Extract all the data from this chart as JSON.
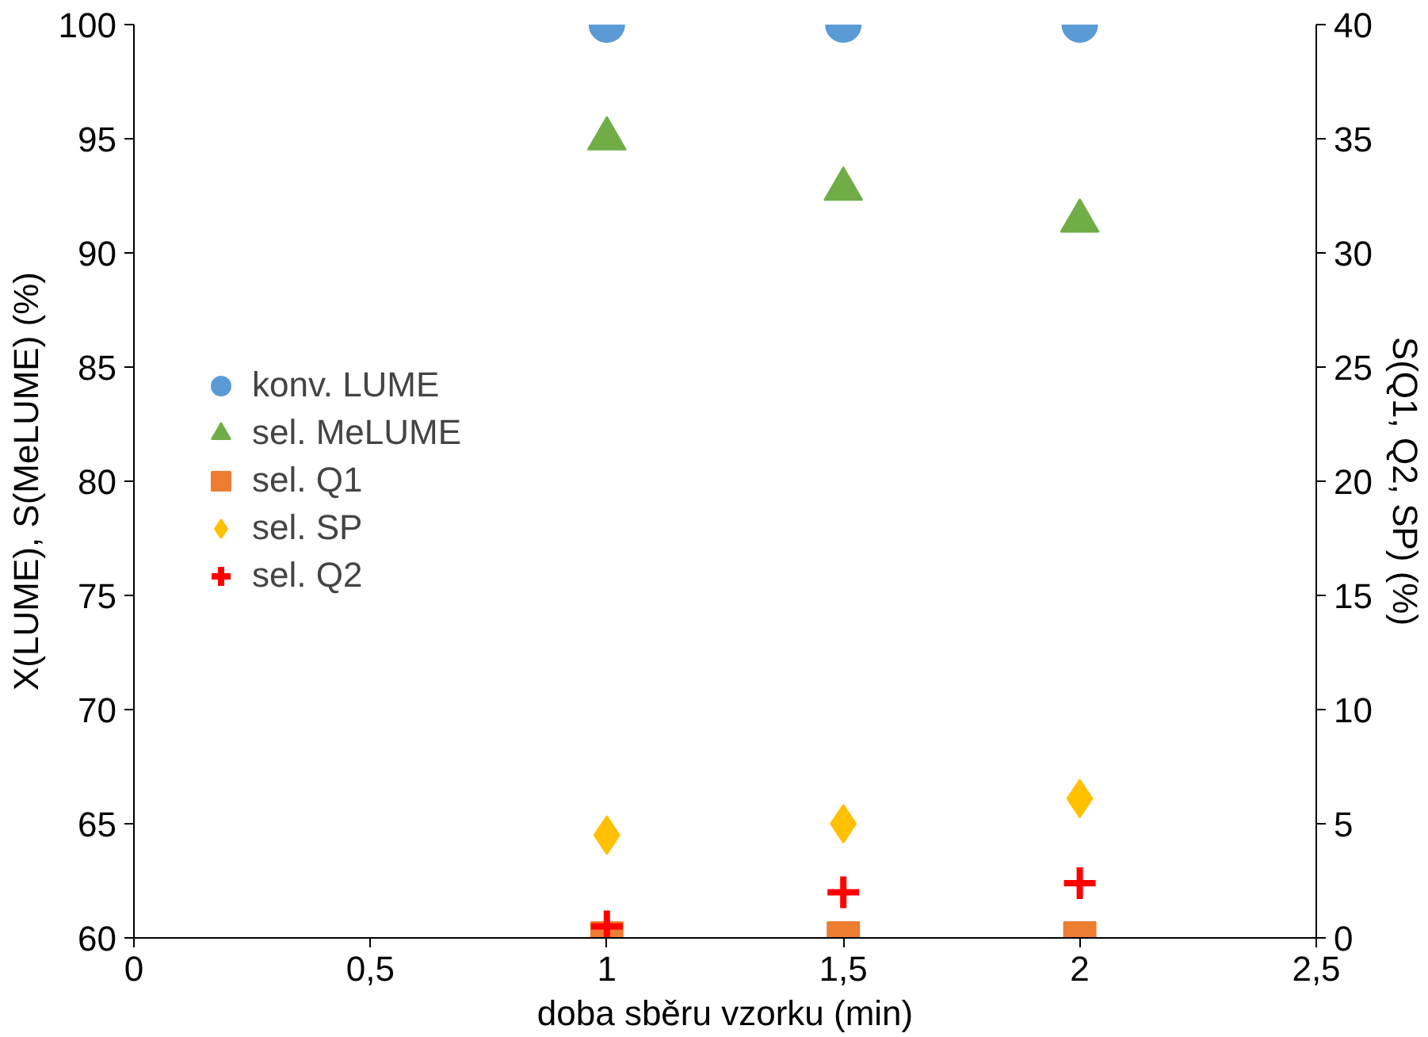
{
  "chart_data": {
    "type": "scatter",
    "xlabel": "doba sběru vzorku (min)",
    "ylabel": "X(LUME), S(MeLUME) (%)",
    "y2label": "S(Q1, Q2, SP) (%)",
    "xlim": [
      0,
      2.5
    ],
    "xticks": [
      0,
      {
        "value": 0.5,
        "label": "0,5"
      },
      1,
      {
        "value": 1.5,
        "label": "1,5"
      },
      2,
      {
        "value": 2.5,
        "label": "2,5"
      }
    ],
    "ylim": [
      60,
      100
    ],
    "yticks": [
      60,
      65,
      70,
      75,
      80,
      85,
      90,
      95,
      100
    ],
    "y2lim": [
      0,
      40
    ],
    "y2ticks": [
      0,
      5,
      10,
      15,
      20,
      25,
      30,
      35,
      40
    ],
    "x": [
      1,
      1.5,
      2
    ],
    "grid": false,
    "legend": "left",
    "series": [
      {
        "name": "konv. LUME",
        "color": "#5b9bd5",
        "marker": "circle",
        "values": [
          100,
          100,
          100
        ]
      },
      {
        "name": "sel. MeLUME",
        "color": "#70ad47",
        "marker": "triangle",
        "values": [
          95,
          92.8,
          91.4
        ]
      },
      {
        "name": "sel. Q1",
        "color": "#ed7d31",
        "marker": "square",
        "axis": "y2",
        "values": [
          0,
          0,
          0
        ]
      },
      {
        "name": "sel. SP",
        "color": "#ffc000",
        "marker": "diamond",
        "axis": "y2",
        "values": [
          4.5,
          5,
          6.1
        ]
      },
      {
        "name": "sel. Q2",
        "color": "#ff0000",
        "marker": "cross",
        "axis": "y2",
        "values": [
          0.5,
          2,
          2.4
        ]
      }
    ]
  }
}
